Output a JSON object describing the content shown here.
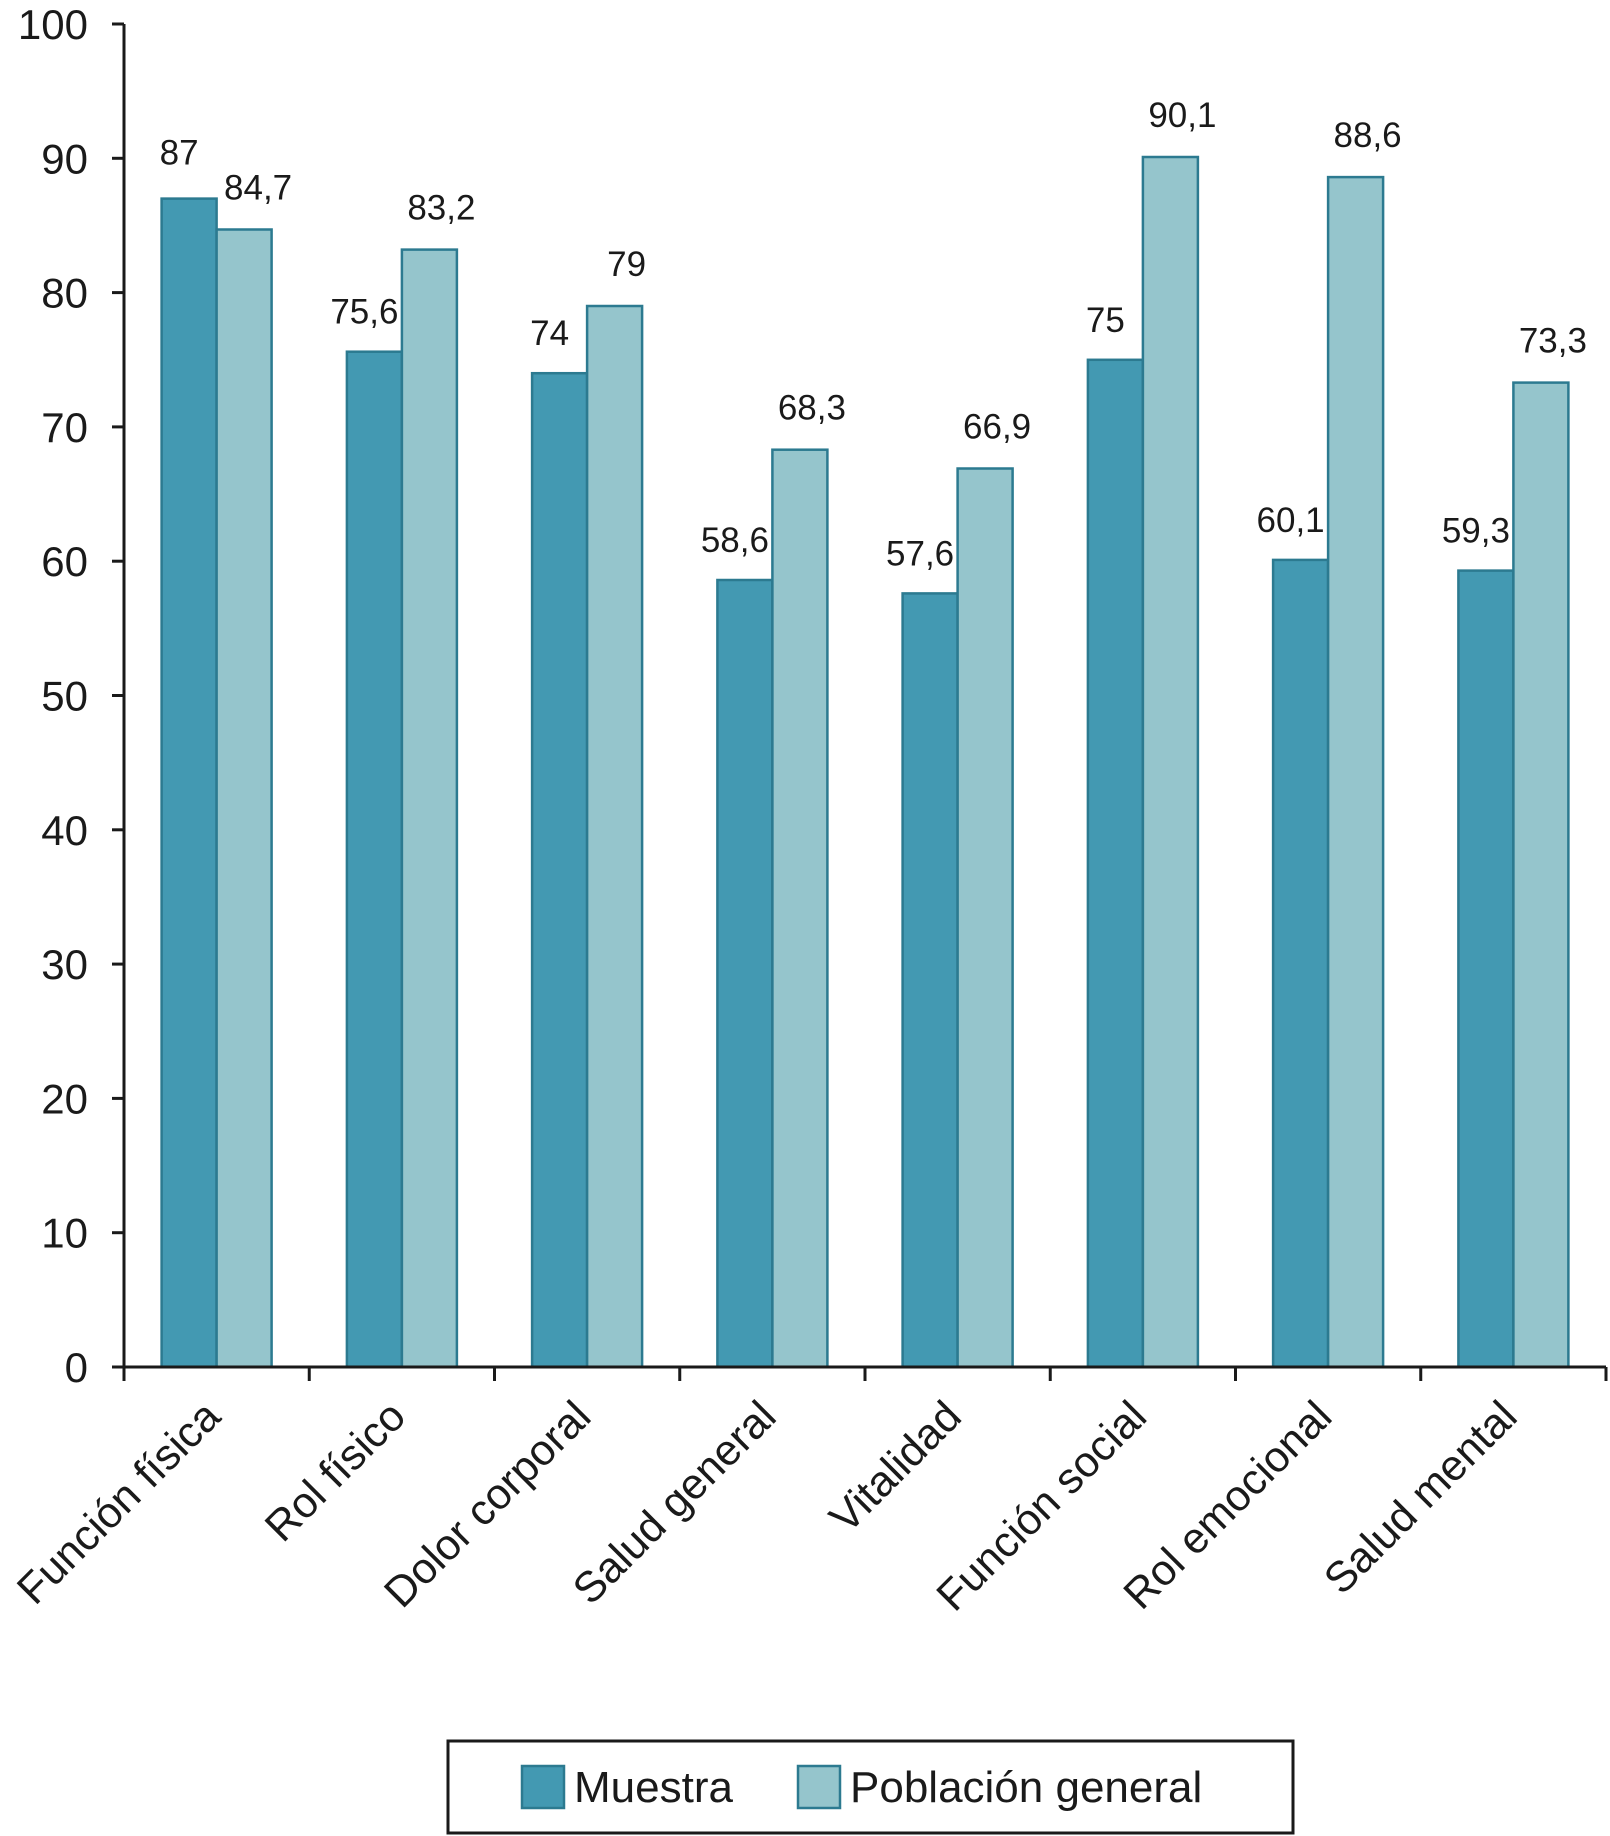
{
  "chart_data": {
    "type": "bar",
    "categories": [
      "Función física",
      "Rol físico",
      "Dolor corporal",
      "Salud general",
      "Vitalidad",
      "Función social",
      "Rol emocional",
      "Salud mental"
    ],
    "series": [
      {
        "name": "Muestra",
        "values": [
          87,
          75.6,
          74,
          58.6,
          57.6,
          75,
          60.1,
          59.3
        ],
        "labels": [
          "87",
          "75,6",
          "74",
          "58,6",
          "57,6",
          "75",
          "60,1",
          "59,3"
        ],
        "color": "#4399b2"
      },
      {
        "name": "Población general",
        "values": [
          84.7,
          83.2,
          79,
          68.3,
          66.9,
          90.1,
          88.6,
          73.3
        ],
        "labels": [
          "84,7",
          "83,2",
          "79",
          "68,3",
          "66,9",
          "90,1",
          "88,6",
          "73,3"
        ],
        "color": "#95c5cc"
      }
    ],
    "ylim": [
      0,
      100
    ],
    "yticks": [
      0,
      10,
      20,
      30,
      40,
      50,
      60,
      70,
      80,
      90,
      100
    ],
    "title": "",
    "xlabel": "",
    "ylabel": "",
    "grid": false,
    "legend": "bottom",
    "colors": {
      "axis": "#1a1a1a",
      "bar_stroke": "#2c7a90"
    }
  }
}
